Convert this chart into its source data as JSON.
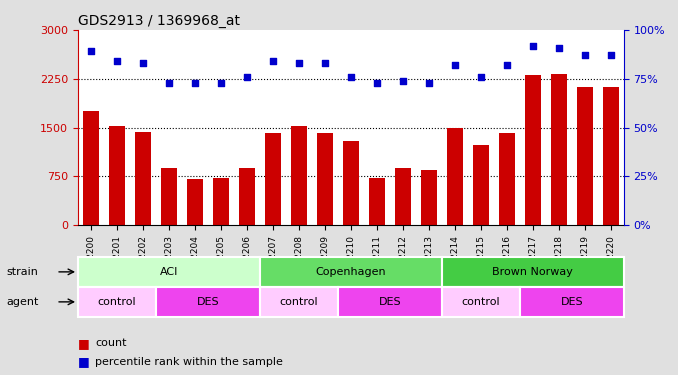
{
  "title": "GDS2913 / 1369968_at",
  "samples": [
    "GSM92200",
    "GSM92201",
    "GSM92202",
    "GSM92203",
    "GSM92204",
    "GSM92205",
    "GSM92206",
    "GSM92207",
    "GSM92208",
    "GSM92209",
    "GSM92210",
    "GSM92211",
    "GSM92212",
    "GSM92213",
    "GSM92214",
    "GSM92215",
    "GSM92216",
    "GSM92217",
    "GSM92218",
    "GSM92219",
    "GSM92220"
  ],
  "counts": [
    1750,
    1520,
    1430,
    870,
    710,
    730,
    870,
    1420,
    1520,
    1410,
    1290,
    720,
    870,
    840,
    1490,
    1230,
    1420,
    2310,
    2320,
    2130,
    2130
  ],
  "percentiles": [
    89,
    84,
    83,
    73,
    73,
    73,
    76,
    84,
    83,
    83,
    76,
    73,
    74,
    73,
    82,
    76,
    82,
    92,
    91,
    87,
    87
  ],
  "bar_color": "#cc0000",
  "dot_color": "#0000cc",
  "ylim_left": [
    0,
    3000
  ],
  "ylim_right": [
    0,
    100
  ],
  "yticks_left": [
    0,
    750,
    1500,
    2250,
    3000
  ],
  "yticks_right": [
    0,
    25,
    50,
    75,
    100
  ],
  "ylabel_left_color": "#cc0000",
  "ylabel_right_color": "#0000cc",
  "grid_values": [
    750,
    1500,
    2250
  ],
  "strain_groups": [
    {
      "label": "ACI",
      "start": 0,
      "end": 7,
      "color": "#ccffcc"
    },
    {
      "label": "Copenhagen",
      "start": 7,
      "end": 14,
      "color": "#66dd66"
    },
    {
      "label": "Brown Norway",
      "start": 14,
      "end": 21,
      "color": "#44cc44"
    }
  ],
  "agent_groups": [
    {
      "label": "control",
      "start": 0,
      "end": 3,
      "color": "#ffccff"
    },
    {
      "label": "DES",
      "start": 3,
      "end": 7,
      "color": "#ee44ee"
    },
    {
      "label": "control",
      "start": 7,
      "end": 10,
      "color": "#ffccff"
    },
    {
      "label": "DES",
      "start": 10,
      "end": 14,
      "color": "#ee44ee"
    },
    {
      "label": "control",
      "start": 14,
      "end": 17,
      "color": "#ffccff"
    },
    {
      "label": "DES",
      "start": 17,
      "end": 21,
      "color": "#ee44ee"
    }
  ],
  "background_color": "#e0e0e0",
  "plot_bg_color": "#ffffff",
  "legend_count_color": "#cc0000",
  "legend_pct_color": "#0000cc",
  "strain_label": "strain",
  "agent_label": "agent"
}
